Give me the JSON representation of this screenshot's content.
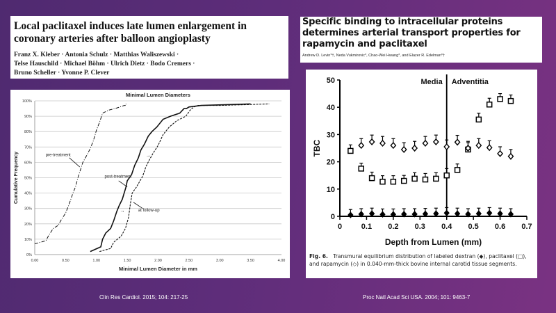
{
  "left_paper": {
    "title": "Local paclitaxel induces late lumen enlargement in coronary arteries after balloon angioplasty",
    "authors_line1": "Franz X. Kleber · Antonia Schulz · Matthias Waliszewski ·",
    "authors_line2": "Telse Hauschild · Michael Böhm · Ulrich Dietz · Bodo Cremers ·",
    "authors_line3": "Bruno Scheller · Yvonne P. Clever",
    "citation": "Clin Res Cardiol. 2015; 104: 217-25"
  },
  "right_paper": {
    "title": "Specific binding to intracellular proteins determines arterial transport properties for rapamycin and paclitaxel",
    "authors": "Andrew D. Levin*†, Neda Vukmirovic*, Chao-Wei Hwang*, and Elazer R. Edelman*†",
    "caption_label": "Fig. 6.",
    "caption_text": "Transmural equilibrium distribution of labeled dextran (◆), paclitaxel (□), and rapamycin (◇) in 0.040-mm-thick bovine internal carotid tissue segments.",
    "citation": "Proc Natl Acad Sci USA. 2004; 101: 9463-7"
  },
  "chart_data": [
    {
      "type": "line",
      "title": "Minimal Lumen Diameters",
      "xlabel": "Minimal Lumen Diameter in mm",
      "ylabel": "Cumulative Frequency",
      "xlim": [
        0,
        4
      ],
      "ylim": [
        0,
        100
      ],
      "xticks": [
        "0.00",
        "0.50",
        "1.00",
        "1.50",
        "2.00",
        "2.50",
        "3.00",
        "3.50",
        "4.00"
      ],
      "yticks": [
        "0%",
        "10%",
        "20%",
        "30%",
        "40%",
        "50%",
        "60%",
        "70%",
        "80%",
        "90%",
        "100%"
      ],
      "grid": true,
      "annotations": [
        "pre-treatment",
        "post-treatment",
        "at follow-up"
      ],
      "series": [
        {
          "name": "pre-treatment",
          "style": "dashdot",
          "x": [
            0.0,
            0.18,
            0.22,
            0.3,
            0.38,
            0.42,
            0.5,
            0.55,
            0.62,
            0.66,
            0.7,
            0.74,
            0.78,
            0.85,
            0.9,
            0.95,
            1.0,
            1.05,
            1.1,
            1.2,
            1.3,
            1.38,
            1.45,
            1.48,
            1.48
          ],
          "y": [
            7,
            9,
            12,
            17,
            19,
            22,
            27,
            32,
            40,
            44,
            50,
            55,
            60,
            65,
            69,
            74,
            81,
            86,
            92,
            94,
            95,
            96,
            97,
            97,
            98
          ]
        },
        {
          "name": "post-treatment",
          "style": "solid",
          "x": [
            0.9,
            1.07,
            1.1,
            1.15,
            1.23,
            1.28,
            1.33,
            1.37,
            1.42,
            1.48,
            1.5,
            1.57,
            1.62,
            1.68,
            1.72,
            1.78,
            1.84,
            1.9,
            1.98,
            2.08,
            2.2,
            2.35,
            2.42,
            2.46,
            2.5,
            2.7,
            3.5
          ],
          "y": [
            2,
            5,
            10,
            14,
            17,
            22,
            28,
            32,
            36,
            44,
            48,
            52,
            58,
            63,
            68,
            72,
            77,
            80,
            83,
            88,
            90,
            92,
            95,
            95,
            96,
            97,
            98
          ]
        },
        {
          "name": "at follow-up",
          "style": "dashed",
          "x": [
            1.05,
            1.23,
            1.28,
            1.4,
            1.47,
            1.52,
            1.55,
            1.58,
            1.65,
            1.75,
            1.8,
            1.85,
            1.92,
            2.0,
            2.08,
            2.18,
            2.3,
            2.45,
            2.52,
            2.58,
            2.65,
            3.0,
            3.8
          ],
          "y": [
            2,
            4,
            8,
            12,
            17,
            24,
            33,
            40,
            44,
            51,
            57,
            61,
            66,
            71,
            78,
            83,
            87,
            90,
            94,
            96,
            97,
            97,
            98
          ]
        }
      ]
    },
    {
      "type": "scatter",
      "xlabel": "Depth from Lumen (mm)",
      "ylabel": "TBC",
      "xlim": [
        0,
        0.7
      ],
      "ylim": [
        0,
        50
      ],
      "xticks": [
        "0",
        "0.1",
        "0.2",
        "0.3",
        "0.4",
        "0.5",
        "0.6",
        "0.7"
      ],
      "yticks": [
        "0",
        "10",
        "20",
        "30",
        "40",
        "50"
      ],
      "region_labels": [
        "Media",
        "Adventitia"
      ],
      "boundary_x": 0.4,
      "series": [
        {
          "name": "dextran",
          "marker": "filled-diamond",
          "x": [
            0.04,
            0.08,
            0.12,
            0.16,
            0.2,
            0.24,
            0.28,
            0.32,
            0.36,
            0.4,
            0.44,
            0.48,
            0.52,
            0.56,
            0.6,
            0.64
          ],
          "y": [
            0.5,
            0.8,
            1.0,
            0.7,
            0.7,
            0.8,
            0.8,
            0.9,
            1.0,
            1.2,
            1.0,
            0.8,
            1.0,
            1.2,
            1.0,
            0.8
          ],
          "err": [
            2,
            2,
            2,
            2,
            2,
            2,
            2,
            2,
            2,
            2,
            2,
            2,
            2,
            2,
            2,
            2
          ]
        },
        {
          "name": "paclitaxel",
          "marker": "open-square",
          "x": [
            0.04,
            0.08,
            0.12,
            0.16,
            0.2,
            0.24,
            0.28,
            0.32,
            0.36,
            0.4,
            0.44,
            0.48,
            0.52,
            0.56,
            0.6,
            0.64
          ],
          "y": [
            24,
            17.5,
            14,
            12.7,
            12.7,
            13,
            13.8,
            13.5,
            13.8,
            15,
            17,
            24.5,
            35.5,
            41,
            43,
            42.3
          ],
          "err": [
            2.2,
            2,
            2.2,
            2.2,
            2.2,
            2,
            2.2,
            2.2,
            2.2,
            2.5,
            2.2,
            2.5,
            2.3,
            2.3,
            2,
            2.2
          ]
        },
        {
          "name": "rapamycin",
          "marker": "open-diamond",
          "x": [
            0.08,
            0.12,
            0.16,
            0.2,
            0.24,
            0.28,
            0.32,
            0.36,
            0.4,
            0.44,
            0.48,
            0.52,
            0.56,
            0.6,
            0.64
          ],
          "y": [
            26,
            27.3,
            26.8,
            26,
            24.5,
            25,
            26.8,
            27.3,
            25.5,
            27.2,
            25,
            26,
            25.2,
            23,
            22
          ],
          "err": [
            2.5,
            2.5,
            2.5,
            2.5,
            2.5,
            2.5,
            2.5,
            2.5,
            2.5,
            2.5,
            2.5,
            2.5,
            2.5,
            2.5,
            2.5
          ]
        }
      ]
    }
  ],
  "colors": {
    "bg_start": "#4f2a70",
    "bg_end": "#7a3282",
    "panel": "#ffffff",
    "ink": "#111111",
    "grid": "#bbbbbb"
  }
}
